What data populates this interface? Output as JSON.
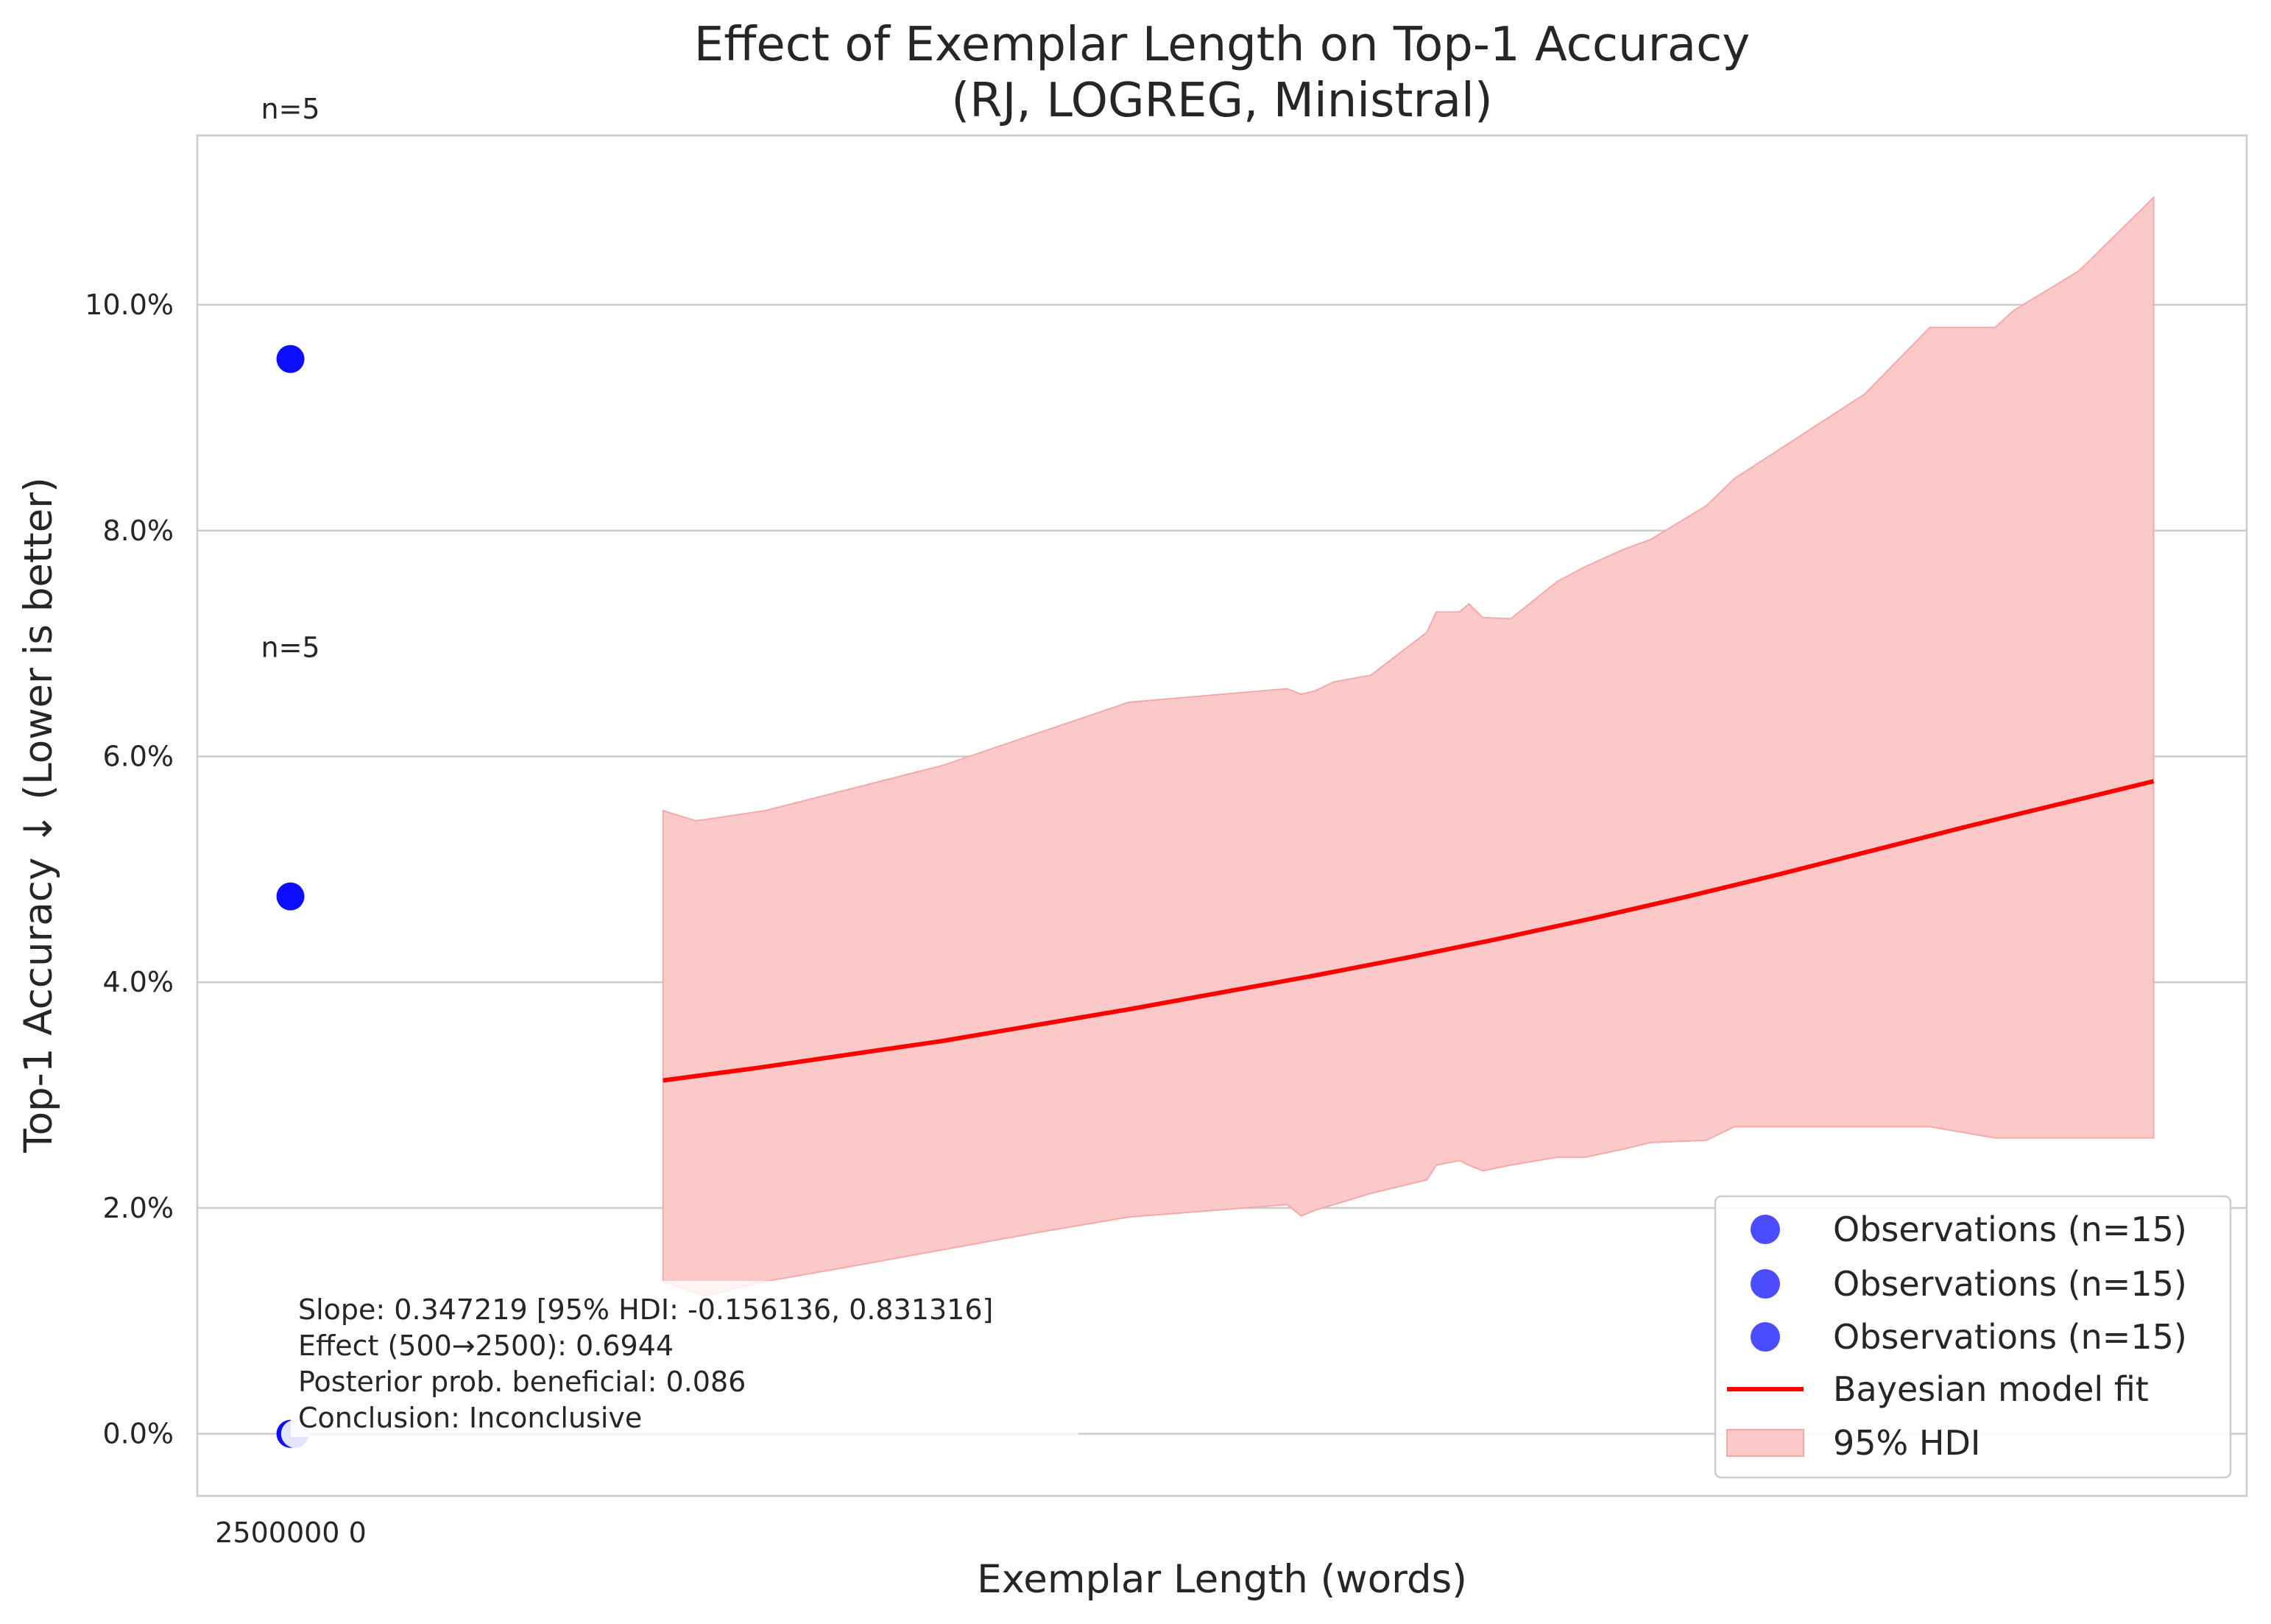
{
  "chart_data": {
    "type": "line",
    "title": "Effect of Exemplar Length on Top-1 Accuracy",
    "subtitle": "(RJ, LOGREG, Ministral)",
    "xlabel": "Exemplar Length (words)",
    "ylabel": "Top-1 Accuracy ↓ (Lower is better)",
    "y_tick_labels": [
      "0.0%",
      "2.0%",
      "4.0%",
      "6.0%",
      "8.0%",
      "10.0%"
    ],
    "y_ticks": [
      0,
      2,
      4,
      6,
      8,
      10
    ],
    "ylim": [
      -0.55,
      11.5
    ],
    "xlim": [
      -1,
      21
    ],
    "x_tick_label_overlap": "2500000 0",
    "grid": "horizontal",
    "legend_position": "lower-right",
    "colors": {
      "observation": "#0000ff",
      "fit_line": "#ff0000",
      "hdi_fill": "#fcc9c9",
      "hdi_edge": "#f4aaaa",
      "grid": "#cccccc",
      "spine": "#cccccc"
    },
    "observations": [
      {
        "x": 0,
        "y": 9.52
      },
      {
        "x": 0,
        "y": 4.76
      },
      {
        "x": 0,
        "y": 0.0
      },
      {
        "x": 0.05,
        "y": 0.0
      }
    ],
    "count_labels": [
      {
        "text": "n=5",
        "x": 0,
        "y": 11.65
      },
      {
        "text": "n=5",
        "x": 0,
        "y": 6.88
      }
    ],
    "series": [
      {
        "name": "Bayesian model fit",
        "x": [
          4,
          5,
          6,
          7,
          8,
          9,
          10,
          11,
          12,
          13,
          14,
          15,
          16,
          17,
          18,
          19,
          20
        ],
        "y": [
          3.13,
          3.24,
          3.36,
          3.48,
          3.62,
          3.76,
          3.91,
          4.06,
          4.22,
          4.39,
          4.57,
          4.76,
          4.96,
          5.17,
          5.38,
          5.58,
          5.78
        ]
      }
    ],
    "hdi": {
      "name": "95% HDI",
      "x": [
        4,
        4.35,
        4.45,
        5.1,
        6,
        7,
        8,
        9,
        10.7,
        10.85,
        11,
        11.2,
        11.6,
        12.2,
        12.3,
        12.55,
        12.65,
        12.8,
        13.1,
        13.6,
        13.9,
        14.3,
        14.6,
        15.2,
        15.5,
        16.9,
        17.6,
        18.3,
        18.5,
        19.2,
        20
      ],
      "upper": [
        5.52,
        5.43,
        5.44,
        5.52,
        5.71,
        5.92,
        6.2,
        6.48,
        6.6,
        6.55,
        6.58,
        6.66,
        6.72,
        7.1,
        7.28,
        7.28,
        7.35,
        7.23,
        7.22,
        7.55,
        7.68,
        7.83,
        7.92,
        8.22,
        8.46,
        9.21,
        9.8,
        9.8,
        9.95,
        10.3,
        10.95
      ],
      "lower": [
        1.35,
        1.25,
        1.22,
        1.35,
        1.48,
        1.63,
        1.78,
        1.92,
        2.03,
        1.93,
        1.98,
        2.03,
        2.13,
        2.25,
        2.38,
        2.42,
        2.38,
        2.33,
        2.38,
        2.45,
        2.45,
        2.52,
        2.58,
        2.6,
        2.72,
        2.72,
        2.72,
        2.62,
        2.62,
        2.62,
        2.62
      ]
    },
    "stats_text": [
      "Slope: 0.347219 [95% HDI: -0.156136, 0.831316]",
      "Effect (500→2500): 0.6944",
      "Posterior prob. beneficial: 0.086",
      "Conclusion: Inconclusive"
    ],
    "legend": [
      {
        "label": "Observations (n=15)",
        "kind": "marker"
      },
      {
        "label": "Observations (n=15)",
        "kind": "marker"
      },
      {
        "label": "Observations (n=15)",
        "kind": "marker"
      },
      {
        "label": "Bayesian model fit",
        "kind": "line"
      },
      {
        "label": "95% HDI",
        "kind": "patch"
      }
    ]
  }
}
